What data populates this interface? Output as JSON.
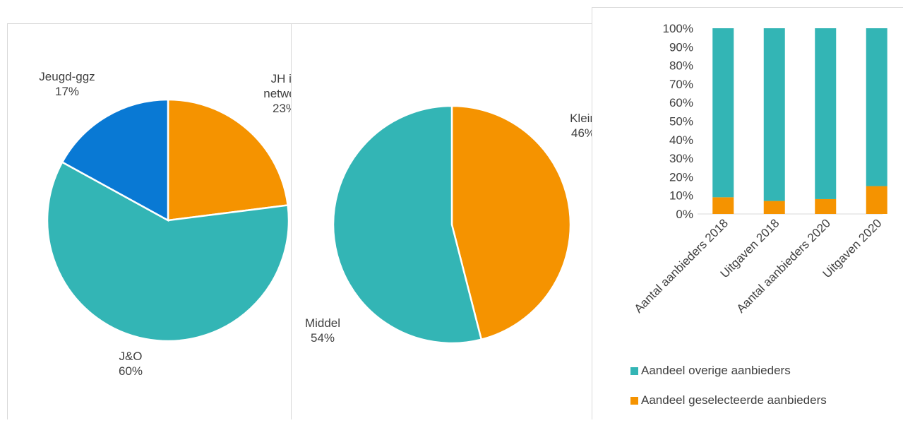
{
  "chart_data": [
    {
      "type": "pie",
      "slices": [
        {
          "label": "JH in\nnetwerk",
          "pct_label": "23%",
          "value": 23,
          "color": "#f59300"
        },
        {
          "label": "J&O",
          "pct_label": "60%",
          "value": 60,
          "color": "#33b5b5"
        },
        {
          "label": "Jeugd-ggz",
          "pct_label": "17%",
          "value": 17,
          "color": "#0979d4"
        }
      ]
    },
    {
      "type": "pie",
      "slices": [
        {
          "label": "Klein",
          "pct_label": "46%",
          "value": 46,
          "color": "#f59300"
        },
        {
          "label": "Middel",
          "pct_label": "54%",
          "value": 54,
          "color": "#33b5b5"
        }
      ]
    },
    {
      "type": "bar",
      "stacked": true,
      "categories": [
        "Aantal aanbieders 2018",
        "Uitgaven 2018",
        "Aantal aanbieders 2020",
        "Uitgaven 2020"
      ],
      "series": [
        {
          "name": "Aandeel geselecteerde aanbieders",
          "values": [
            9,
            7,
            8,
            15
          ],
          "color": "#f59300"
        },
        {
          "name": "Aandeel overige aanbieders",
          "values": [
            91,
            93,
            92,
            85
          ],
          "color": "#33b5b5"
        }
      ],
      "yticks": [
        "0%",
        "10%",
        "20%",
        "30%",
        "40%",
        "50%",
        "60%",
        "70%",
        "80%",
        "90%",
        "100%"
      ],
      "ylim": [
        0,
        100
      ],
      "legend": [
        "Aandeel overige aanbieders",
        "Aandeel geselecteerde aanbieders"
      ],
      "legend_position": "bottom"
    }
  ]
}
